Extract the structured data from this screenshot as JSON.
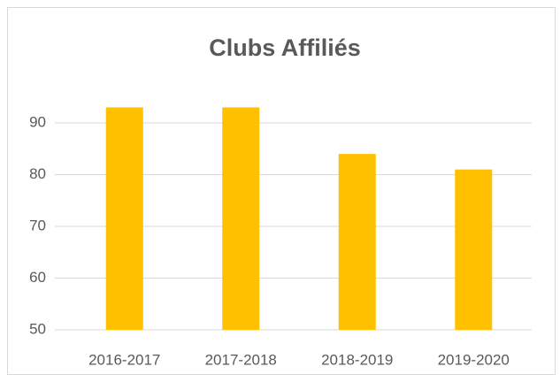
{
  "chart_data": {
    "type": "bar",
    "title": "Clubs Affiliés",
    "categories": [
      "2016-2017",
      "2017-2018",
      "2018-2019",
      "2019-2020"
    ],
    "values": [
      93,
      93,
      84,
      81
    ],
    "color": "#ffc000",
    "ylim": [
      50,
      95
    ],
    "yticks": [
      50,
      60,
      70,
      80,
      90
    ],
    "grid": true
  }
}
